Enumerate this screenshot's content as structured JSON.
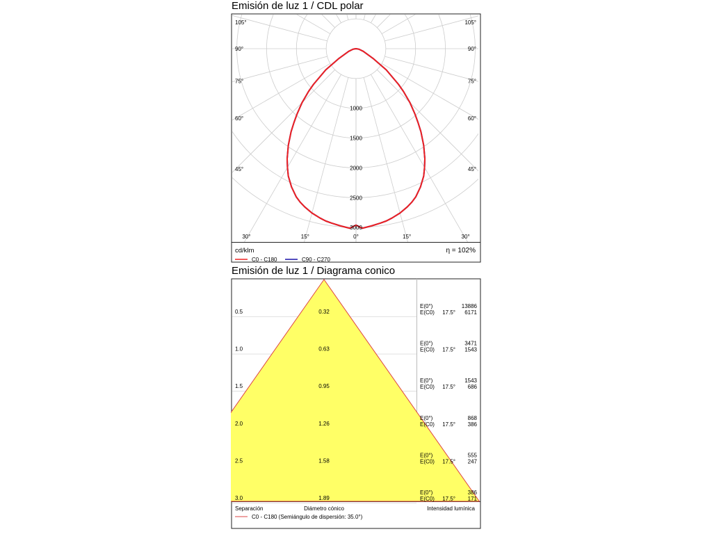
{
  "polar": {
    "title": "Emisión de luz 1 / CDL polar",
    "unit_label": "cd/klm",
    "efficiency_label": "η = 102%"
  },
  "cone": {
    "title": "Emisión de luz 1 / Diagrama conico",
    "footer_separation": "Separación",
    "footer_diameter": "Diámetro cónico",
    "footer_intensity": "Intensidad lumínica",
    "legend_label": "C0 - C180 (Semiángulo de dispersión: 35.0°)"
  },
  "colors": {
    "c0_c180": "#ee2222",
    "c90_c270": "#1a12a8",
    "cone_fill": "#ffff66",
    "cone_stroke": "#dd4444",
    "grid": "#cccccc"
  },
  "chart_data": [
    {
      "type": "polar",
      "title": "Emisión de luz 1 / CDL polar",
      "unit": "cd/klm",
      "radial_ticks": [
        1000,
        1500,
        2000,
        2500,
        3000
      ],
      "radial_max": 3500,
      "angle_labels": [
        "105°",
        "90°",
        "75°",
        "60°",
        "45°",
        "30°",
        "15°",
        "0°"
      ],
      "legend": [
        "C0 - C180",
        "C90 - C270"
      ],
      "efficiency": "η = 102%",
      "series": [
        {
          "name": "C90 - C270",
          "angles_deg": [
            0,
            2,
            5,
            8,
            10,
            12,
            15,
            18,
            20,
            22,
            25,
            28,
            30,
            32,
            35,
            38,
            40,
            42,
            45,
            48,
            50,
            55,
            60,
            70,
            80,
            90
          ],
          "values": [
            2960,
            3015,
            2985,
            2955,
            2935,
            2905,
            2855,
            2790,
            2740,
            2680,
            2560,
            2420,
            2300,
            2180,
            1980,
            1770,
            1620,
            1480,
            1280,
            1070,
            930,
            620,
            340,
            130,
            50,
            0
          ]
        },
        {
          "name": "C0 - C180",
          "angles_deg": [
            0,
            2,
            5,
            8,
            10,
            12,
            15,
            18,
            20,
            22,
            25,
            28,
            30,
            32,
            35,
            38,
            40,
            42,
            45,
            48,
            50,
            55,
            60,
            70,
            80,
            90
          ],
          "values": [
            2960,
            3015,
            2985,
            2955,
            2935,
            2905,
            2855,
            2790,
            2740,
            2680,
            2560,
            2420,
            2300,
            2180,
            1980,
            1770,
            1620,
            1480,
            1280,
            1070,
            930,
            620,
            340,
            130,
            50,
            0
          ]
        }
      ]
    },
    {
      "type": "table",
      "title": "Emisión de luz 1 / Diagrama conico",
      "half_angle_deg": 35.0,
      "columns": [
        "Separación",
        "Diámetro cónico",
        "Intensidad lumínica"
      ],
      "rows": [
        {
          "separation": "0.5",
          "diameter": "0.32",
          "e0_label": "E(0°)",
          "e0": "13886",
          "ec0_label": "E(C0)",
          "angle": "17.5°",
          "ec0": "6171"
        },
        {
          "separation": "1.0",
          "diameter": "0.63",
          "e0_label": "E(0°)",
          "e0": "3471",
          "ec0_label": "E(C0)",
          "angle": "17.5°",
          "ec0": "1543"
        },
        {
          "separation": "1.5",
          "diameter": "0.95",
          "e0_label": "E(0°)",
          "e0": "1543",
          "ec0_label": "E(C0)",
          "angle": "17.5°",
          "ec0": "686"
        },
        {
          "separation": "2.0",
          "diameter": "1.26",
          "e0_label": "E(0°)",
          "e0": "868",
          "ec0_label": "E(C0)",
          "angle": "17.5°",
          "ec0": "386"
        },
        {
          "separation": "2.5",
          "diameter": "1.58",
          "e0_label": "E(0°)",
          "e0": "555",
          "ec0_label": "E(C0)",
          "angle": "17.5°",
          "ec0": "247"
        },
        {
          "separation": "3.0",
          "diameter": "1.89",
          "e0_label": "E(0°)",
          "e0": "386",
          "ec0_label": "E(C0)",
          "angle": "17.5°",
          "ec0": "171"
        }
      ],
      "legend": "C0 - C180 (Semiángulo de dispersión: 35.0°)"
    }
  ]
}
